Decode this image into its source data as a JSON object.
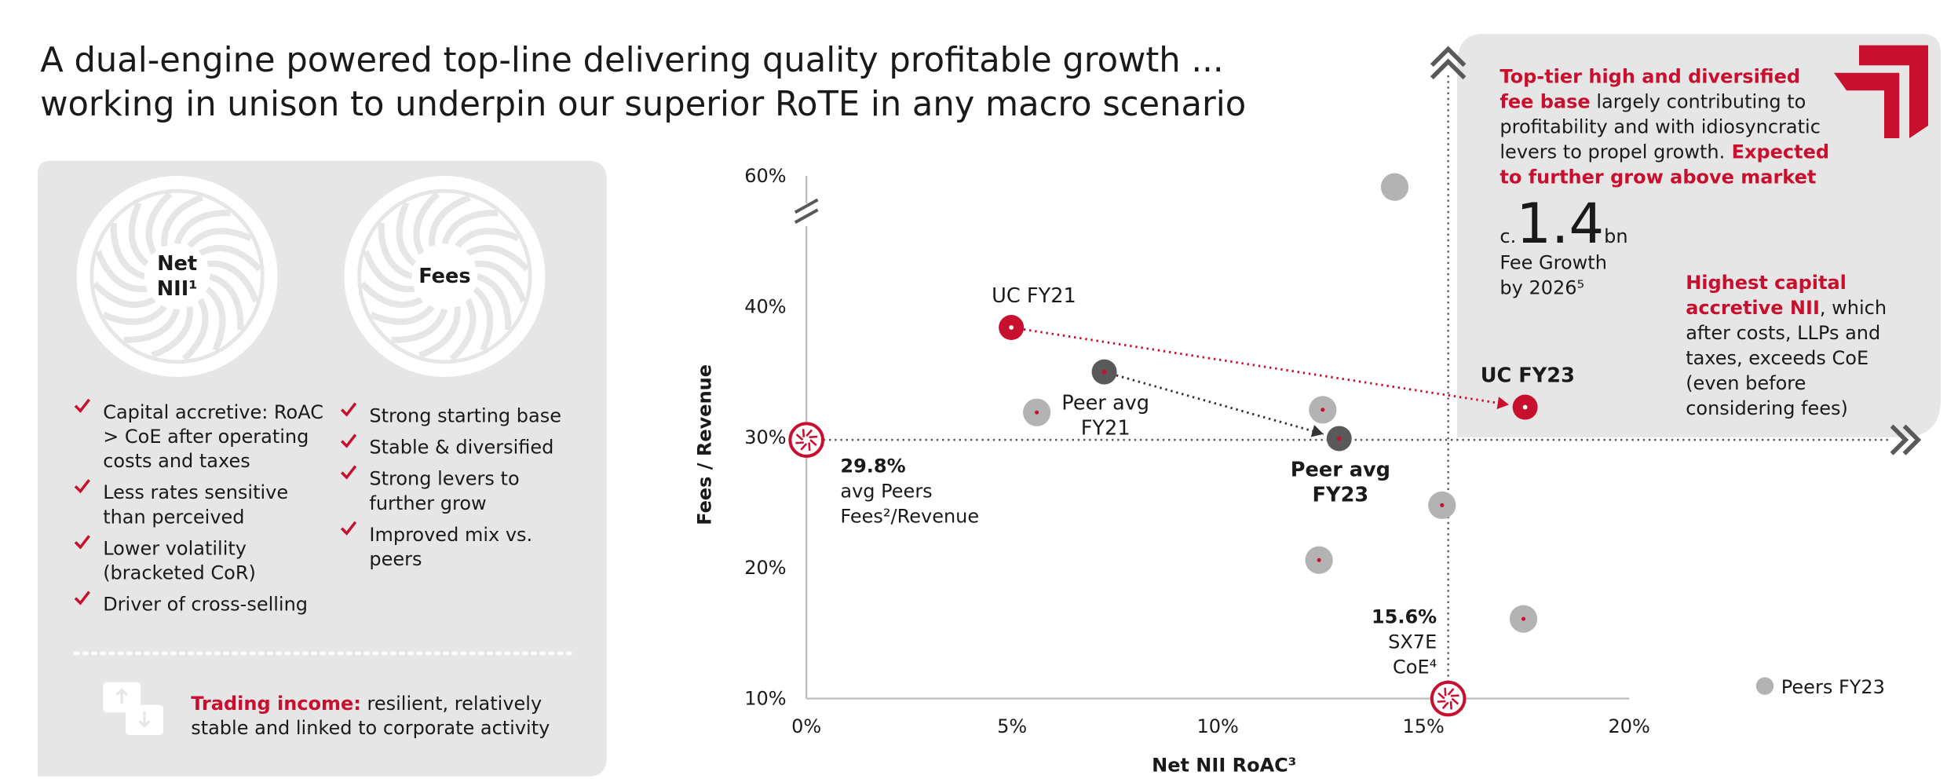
{
  "header": {
    "title_lines": [
      "A dual-engine powered top-line delivering quality profitable growth ...",
      "working in unison to underpin our superior RoTE in any macro scenario"
    ]
  },
  "engines": [
    {
      "label": [
        "Net",
        "NII¹"
      ],
      "bullets": [
        [
          "Capital accretive: RoAC",
          "> CoE after operating",
          "costs and taxes"
        ],
        [
          "Less rates sensitive",
          "than perceived"
        ],
        [
          "Lower volatility",
          "(bracketed CoR)"
        ],
        [
          "Driver of cross-selling"
        ]
      ]
    },
    {
      "label": [
        "Fees"
      ],
      "bullets": [
        [
          "Strong starting base"
        ],
        [
          "Stable & diversified"
        ],
        [
          "Strong levers to",
          "further grow"
        ],
        [
          "Improved mix vs.",
          "peers"
        ]
      ]
    }
  ],
  "trading": [
    [
      {
        "text": "Trading income:",
        "highlight": true
      },
      {
        "text": " resilient, relatively"
      }
    ],
    [
      {
        "text": "stable and linked to corporate activity"
      }
    ]
  ],
  "callout_fees": [
    [
      {
        "text": "Top-tier high and diversified",
        "highlight": true
      }
    ],
    [
      {
        "text": "fee base",
        "highlight": true
      },
      {
        "text": " largely contributing to"
      }
    ],
    [
      {
        "text": "profitability and with idiosyncratic"
      }
    ],
    [
      {
        "text": "levers to propel growth."
      },
      {
        "text": " Expected",
        "highlight": true
      }
    ],
    [
      {
        "text": "to further grow above market",
        "highlight": true
      }
    ]
  ],
  "fee_growth": {
    "prefix": "c.",
    "value": 1.4,
    "unit": "bn",
    "caption": [
      "Fee Growth",
      "by 2026⁵"
    ]
  },
  "callout_nii": [
    [
      {
        "text": "Highest capital",
        "highlight": true
      }
    ],
    [
      {
        "text": "accretive NII",
        "highlight": true
      },
      {
        "text": ", which"
      }
    ],
    [
      {
        "text": "after costs, LLPs and"
      }
    ],
    [
      {
        "text": "taxes, exceeds CoE"
      }
    ],
    [
      {
        "text": "(even before"
      }
    ],
    [
      {
        "text": "considering fees)"
      }
    ]
  ],
  "chart_data": {
    "type": "scatter",
    "x_label": "Net NII RoAC³",
    "y_label": "Fees / Revenue",
    "xlim": [
      0,
      20
    ],
    "ylim": [
      10,
      60
    ],
    "xticks": [
      {
        "value": 0,
        "label": "0%"
      },
      {
        "value": 5,
        "label": "5%"
      },
      {
        "value": 10,
        "label": "10%"
      },
      {
        "value": 15,
        "label": "15%"
      },
      {
        "value": 20,
        "label": "20%"
      }
    ],
    "yticks": [
      {
        "value": 10,
        "label": "10%"
      },
      {
        "value": 20,
        "label": "20%"
      },
      {
        "value": 30,
        "label": "30%"
      },
      {
        "value": 40,
        "label": "40%"
      },
      {
        "value": 60,
        "label": "60%"
      }
    ],
    "y_axis_break": true,
    "series": [
      {
        "name": "Peers FY23",
        "color": "#b3b3b3",
        "x": [
          14.3,
          5.6,
          12.55,
          15.45,
          12.46,
          17.43
        ],
        "values": [
          58.3,
          31.9,
          32.1,
          24.8,
          20.6,
          16.1
        ]
      }
    ],
    "uc": {
      "color": "#c8102e",
      "points": [
        {
          "label": [
            "UC FY21"
          ],
          "x": 4.98,
          "y": 38.4
        },
        {
          "label": [
            "UC FY23"
          ],
          "x": 17.47,
          "y": 32.3
        }
      ]
    },
    "peer_avg": {
      "color": "#595959",
      "points": [
        {
          "label": [
            "Peer avg",
            "FY21"
          ],
          "x": 7.24,
          "y": 35.0
        },
        {
          "label": [
            "Peer avg",
            "FY23"
          ],
          "x": 12.95,
          "y": 29.9
        }
      ]
    },
    "h_reference": {
      "value": 29.8,
      "label": [
        "29.8%",
        "avg Peers",
        "Fees²/Revenue"
      ]
    },
    "v_reference": {
      "value": 15.6,
      "label": [
        "15.6%",
        "SX7E",
        "CoE⁴"
      ]
    },
    "legend": "bottom-right"
  }
}
